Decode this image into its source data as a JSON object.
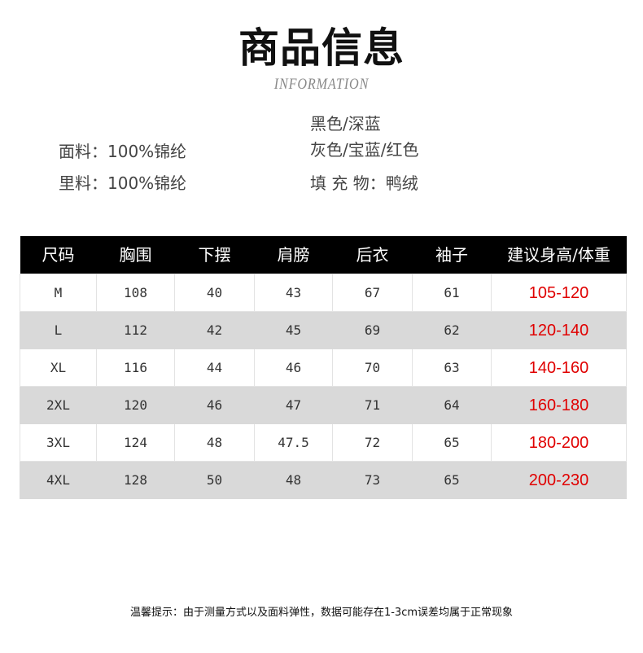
{
  "title": "商品信息",
  "subtitle": "INFORMATION",
  "info": {
    "fabric": "面料：100%锦纶",
    "lining": "里料：100%锦纶",
    "colors_line1": "黑色/深蓝",
    "colors_line2": "灰色/宝蓝/红色",
    "filling": "填 充 物：鸭绒"
  },
  "table": {
    "headers": [
      "尺码",
      "胸围",
      "下摆",
      "肩膀",
      "后衣",
      "袖子",
      "建议身高/体重"
    ],
    "rows": [
      [
        "M",
        "108",
        "40",
        "43",
        "67",
        "61",
        "105-120"
      ],
      [
        "L",
        "112",
        "42",
        "45",
        "69",
        "62",
        "120-140"
      ],
      [
        "XL",
        "116",
        "44",
        "46",
        "70",
        "63",
        "140-160"
      ],
      [
        "2XL",
        "120",
        "46",
        "47",
        "71",
        "64",
        "160-180"
      ],
      [
        "3XL",
        "124",
        "48",
        "47.5",
        "72",
        "65",
        "180-200"
      ],
      [
        "4XL",
        "128",
        "50",
        "48",
        "73",
        "65",
        "200-230"
      ]
    ]
  },
  "note": "温馨提示：由于测量方式以及面料弹性，数据可能存在1-3cm误差均属于正常现象",
  "colors": {
    "header_bg": "#000000",
    "stripe": "#d9d9d9",
    "accent": "#e00000"
  }
}
